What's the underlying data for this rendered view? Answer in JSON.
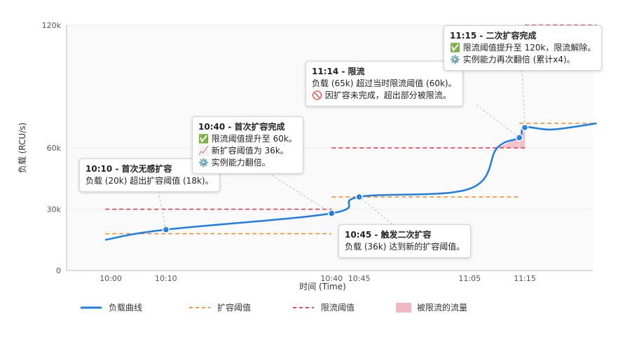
{
  "chart_data": {
    "type": "line",
    "xlabel": "时间 (Time)",
    "ylabel": "负载 (RCU/s)",
    "x_ticks": [
      "10:00",
      "10:10",
      "10:40",
      "10:45",
      "11:05",
      "11:15"
    ],
    "y_ticks": [
      "0",
      "30k",
      "60k",
      "120k"
    ],
    "ylim": [
      0,
      120000
    ],
    "legend": [
      {
        "label": "负载曲线",
        "style": "solid",
        "color": "#1e7ee8"
      },
      {
        "label": "扩容阈值",
        "style": "dashed",
        "color": "#f08c28"
      },
      {
        "label": "限流阈值",
        "style": "dashed",
        "color": "#dc3545"
      },
      {
        "label": "被限流的流量",
        "style": "fill",
        "color": "#f2b8bf"
      }
    ],
    "series": [
      {
        "name": "负载曲线",
        "color": "#1e7ee8",
        "points": [
          [
            "09:59",
            15000
          ],
          [
            "10:10",
            20000
          ],
          [
            "10:40",
            28000
          ],
          [
            "10:45",
            36000
          ],
          [
            "11:05",
            40000
          ],
          [
            "11:10",
            60000
          ],
          [
            "11:14",
            65000
          ],
          [
            "11:15",
            70000
          ],
          [
            "11:20",
            69000
          ],
          [
            "11:28",
            72000
          ]
        ]
      }
    ],
    "scaling_threshold": [
      {
        "from": "09:59",
        "to": "10:40",
        "value": 18000
      },
      {
        "from": "10:40",
        "to": "11:14",
        "value": 36000
      },
      {
        "from": "11:14",
        "to": "11:28",
        "value": 72000
      }
    ],
    "throttle_threshold": [
      {
        "from": "09:59",
        "to": "10:40",
        "value": 30000
      },
      {
        "from": "10:40",
        "to": "11:15",
        "value": 60000
      },
      {
        "from": "11:15",
        "to": "11:28",
        "value": 120000
      }
    ],
    "throttled_area": {
      "from": "11:10",
      "to": "11:15",
      "threshold": 60000
    },
    "markers": [
      "10:10",
      "10:40",
      "10:45",
      "11:14",
      "11:15"
    ]
  },
  "callouts": [
    {
      "title": "10:10 - 首次无感扩容",
      "lines": [
        "负载 (20k) 超出扩容阈值 (18k)。"
      ]
    },
    {
      "title": "10:40 - 首次扩容完成",
      "lines": [
        "✅ 限流阈值提升至 60k。",
        "📈 新扩容阈值为 36k。",
        "⚙️ 实例能力翻倍。"
      ]
    },
    {
      "title": "10:45 - 触发二次扩容",
      "lines": [
        "负载 (36k) 达到新的扩容阈值。"
      ]
    },
    {
      "title": "11:14 - 限流",
      "lines": [
        "负载 (65k) 超过当时限流阈值 (60k)。",
        "🚫 因扩容未完成，超出部分被限流。"
      ]
    },
    {
      "title": "11:15 - 二次扩容完成",
      "lines": [
        "✅ 限流阈值提升至 120k，限流解除。",
        "⚙️ 实例能力再次翻倍 (累计x4)。"
      ]
    }
  ]
}
